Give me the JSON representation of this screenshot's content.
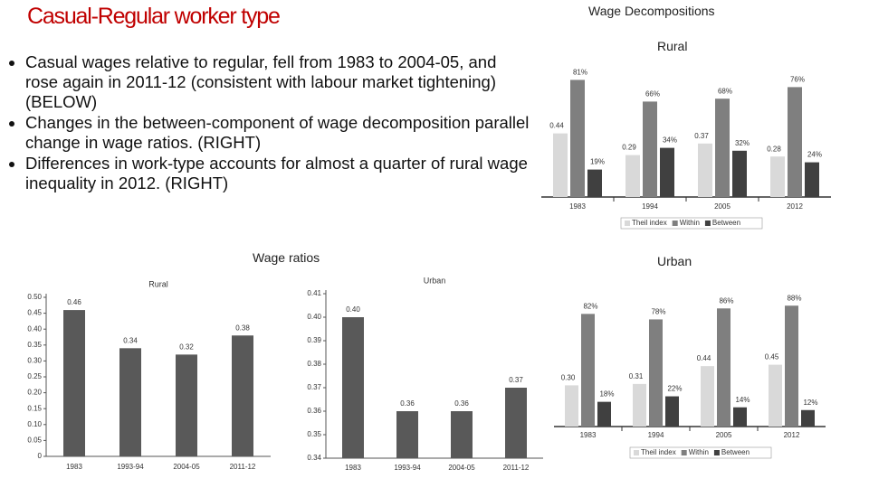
{
  "slide": {
    "title": "Casual-Regular worker type",
    "bullets": [
      "Casual wages relative to regular, fell from 1983 to 2004-05, and rose again in 2011-12 (consistent with labour market tightening) (BELOW)",
      "Changes in the between-component of wage decomposition parallel change in wage ratios. (RIGHT)",
      "Differences in work-type accounts for almost a quarter of rural wage inequality in 2012. (RIGHT)"
    ],
    "wage_ratios_heading": "Wage ratios",
    "decomp_heading": "Wage Decompositions",
    "decomp_rural_heading": "Rural",
    "decomp_urban_heading": "Urban"
  },
  "chart_data": [
    {
      "type": "bar",
      "title": "Rural",
      "categories": [
        "1983",
        "1993-94",
        "2004-05",
        "2011-12"
      ],
      "values": [
        0.46,
        0.34,
        0.32,
        0.38
      ],
      "color": "#595959",
      "ylim": [
        0,
        0.5
      ],
      "yticks": [
        0,
        {
          "value": 0.05,
          "label": "0.05"
        },
        {
          "value": 0.1,
          "label": "0.10"
        },
        {
          "value": 0.15,
          "label": "0.15"
        },
        {
          "value": 0.2,
          "label": "0.20"
        },
        {
          "value": 0.25,
          "label": "0.25"
        },
        {
          "value": 0.3,
          "label": "0.30"
        },
        {
          "value": 0.35,
          "label": "0.35"
        },
        {
          "value": 0.4,
          "label": "0.40"
        },
        {
          "value": 0.45,
          "label": "0.45"
        },
        {
          "value": 0.5,
          "label": "0.50"
        }
      ]
    },
    {
      "type": "bar",
      "title": "Urban",
      "categories": [
        "1983",
        "1993-94",
        "2004-05",
        "2011-12"
      ],
      "values": [
        0.4,
        0.36,
        0.36,
        0.37
      ],
      "value_labels": [
        "0.40",
        "0.36",
        "0.36",
        "0.37"
      ],
      "color": "#595959",
      "ylim": [
        0.34,
        0.41
      ],
      "yticks": [
        0.34,
        0.35,
        0.36,
        0.37,
        0.38,
        0.39,
        {
          "value": 0.4,
          "label": "0.40"
        },
        0.41
      ]
    },
    {
      "type": "grouped_bar",
      "categories": [
        "1983",
        "1994",
        "2005",
        "2012"
      ],
      "ylim": [
        0,
        100
      ],
      "y2lim": [
        0,
        1
      ],
      "series": [
        {
          "name": "Theil index",
          "color": "#d9d9d9",
          "axis": "y2",
          "values": [
            0.44,
            0.29,
            0.37,
            0.28
          ],
          "value_labels": [
            "0.44",
            "0.29",
            "0.37",
            "0.28"
          ]
        },
        {
          "name": "Within",
          "color": "#7f7f7f",
          "values": [
            81,
            66,
            68,
            76
          ],
          "value_labels": [
            "81%",
            "66%",
            "68%",
            "76%"
          ]
        },
        {
          "name": "Between",
          "color": "#404040",
          "values": [
            19,
            34,
            32,
            24
          ],
          "value_labels": [
            "19%",
            "34%",
            "32%",
            "24%"
          ]
        }
      ]
    },
    {
      "type": "grouped_bar",
      "categories": [
        "1983",
        "1994",
        "2005",
        "2012"
      ],
      "ylim": [
        0,
        100
      ],
      "y2lim": [
        0,
        1
      ],
      "series": [
        {
          "name": "Theil index",
          "color": "#d9d9d9",
          "axis": "y2",
          "values": [
            0.3,
            0.31,
            0.44,
            0.45
          ],
          "value_labels": [
            "0.30",
            "0.31",
            "0.44",
            "0.45"
          ]
        },
        {
          "name": "Within",
          "color": "#7f7f7f",
          "values": [
            82,
            78,
            86,
            88
          ],
          "value_labels": [
            "82%",
            "78%",
            "86%",
            "88%"
          ]
        },
        {
          "name": "Between",
          "color": "#404040",
          "values": [
            18,
            22,
            14,
            12
          ],
          "value_labels": [
            "18%",
            "22%",
            "14%",
            "12%"
          ]
        }
      ]
    }
  ]
}
